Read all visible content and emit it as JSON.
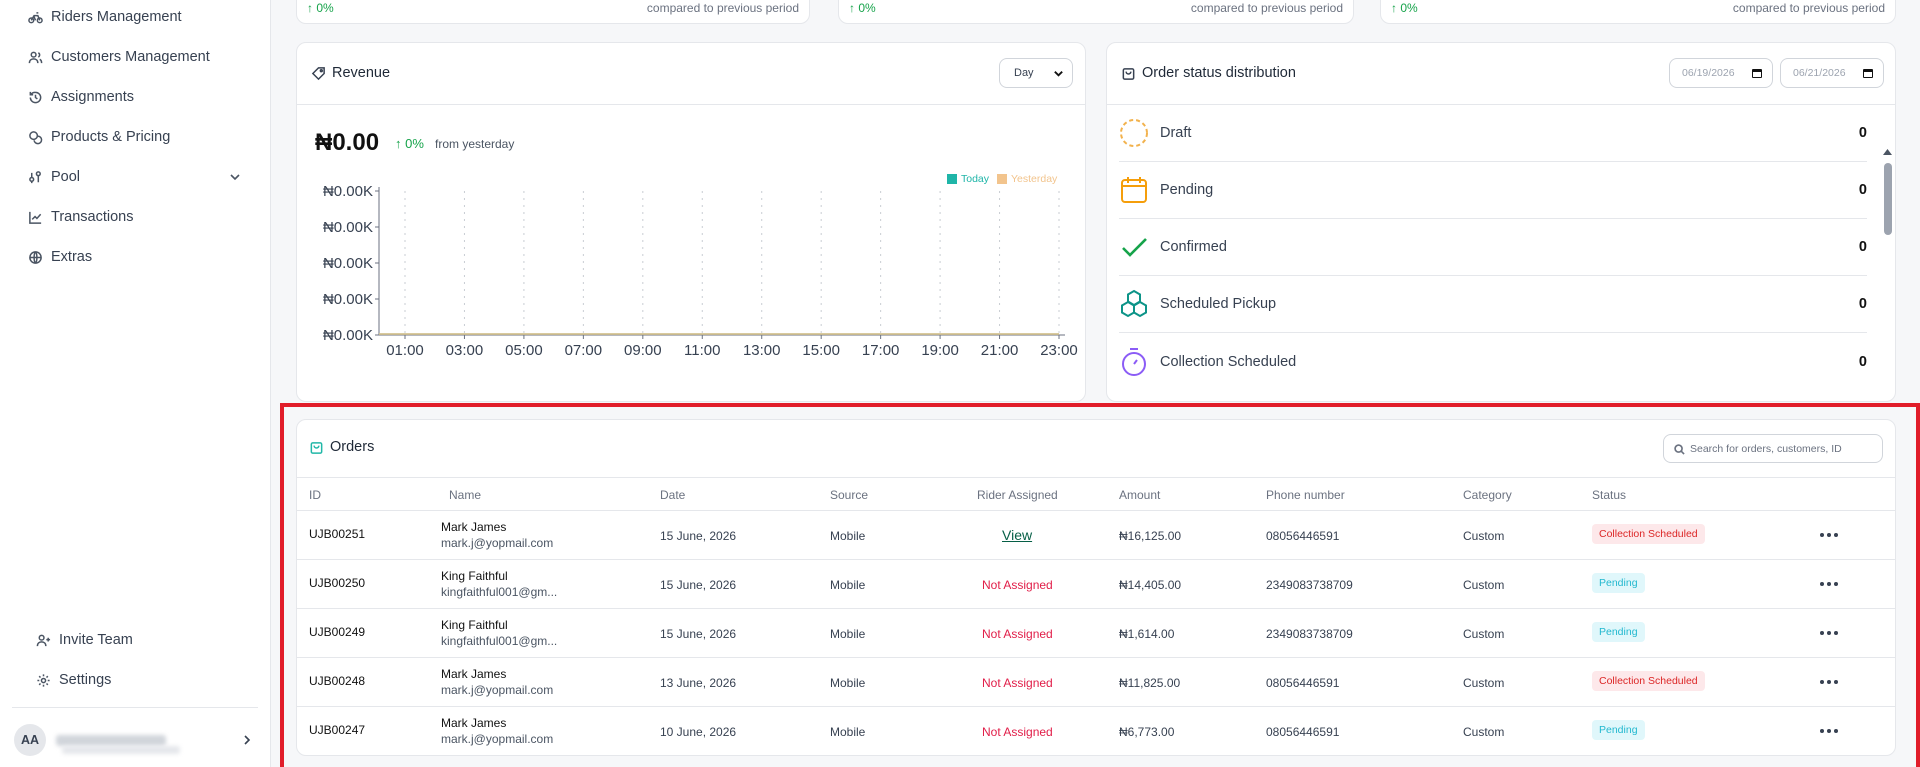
{
  "sidebar": {
    "items": [
      {
        "label": "Riders Management",
        "icon": "bike-icon"
      },
      {
        "label": "Customers Management",
        "icon": "users-icon"
      },
      {
        "label": "Assignments",
        "icon": "history-icon"
      },
      {
        "label": "Products & Pricing",
        "icon": "coins-icon"
      },
      {
        "label": "Pool",
        "icon": "pool-icon"
      },
      {
        "label": "Transactions",
        "icon": "chart-line-icon"
      },
      {
        "label": "Extras",
        "icon": "globe-icon"
      }
    ],
    "invite_label": "Invite Team",
    "settings_label": "Settings",
    "user_initials": "AA"
  },
  "stats": [
    {
      "pct": "0%",
      "compare": "compared to previous period"
    },
    {
      "pct": "0%",
      "compare": "compared to previous period"
    },
    {
      "pct": "0%",
      "compare": "compared to previous period"
    }
  ],
  "revenue": {
    "title": "Revenue",
    "period_select": "Day",
    "amount": "₦0.00",
    "change_pct": "0%",
    "change_text": "from yesterday"
  },
  "chart_data": {
    "type": "line",
    "x": [
      "01:00",
      "03:00",
      "05:00",
      "07:00",
      "09:00",
      "11:00",
      "13:00",
      "15:00",
      "17:00",
      "19:00",
      "21:00",
      "23:00"
    ],
    "y_tick_labels": [
      "₦0.00K",
      "₦0.00K",
      "₦0.00K",
      "₦0.00K",
      "₦0.00K"
    ],
    "series": [
      {
        "name": "Today",
        "color": "#1fb5a8",
        "values": [
          0,
          0,
          0,
          0,
          0,
          0,
          0,
          0,
          0,
          0,
          0,
          0
        ]
      },
      {
        "name": "Yesterday",
        "color": "#f2c48d",
        "values": [
          0,
          0,
          0,
          0,
          0,
          0,
          0,
          0,
          0,
          0,
          0,
          0
        ]
      }
    ],
    "legend": "top-right",
    "grid": "vertical-dashed"
  },
  "order_status": {
    "title": "Order status distribution",
    "date_from": "06/19/2026",
    "date_to": "06/21/2026",
    "items": [
      {
        "label": "Draft",
        "count": "0",
        "color": "#f2b24d"
      },
      {
        "label": "Pending",
        "count": "0",
        "color": "#f59e0b"
      },
      {
        "label": "Confirmed",
        "count": "0",
        "color": "#16a34a"
      },
      {
        "label": "Scheduled Pickup",
        "count": "0",
        "color": "#0d9488"
      },
      {
        "label": "Collection Scheduled",
        "count": "0",
        "color": "#8b5cf6"
      }
    ]
  },
  "orders": {
    "title": "Orders",
    "search_placeholder": "Search for orders, customers, ID",
    "columns": [
      "ID",
      "Name",
      "Date",
      "Source",
      "Rider Assigned",
      "Amount",
      "Phone number",
      "Category",
      "Status"
    ],
    "rows": [
      {
        "id": "UJB00251",
        "name": "Mark James",
        "email": "mark.j@yopmail.com",
        "date": "15 June, 2026",
        "source": "Mobile",
        "rider": "View",
        "amount": "₦16,125.00",
        "phone": "08056446591",
        "category": "Custom",
        "status": "Collection Scheduled"
      },
      {
        "id": "UJB00250",
        "name": "King Faithful",
        "email": "kingfaithful001@gm...",
        "date": "15 June, 2026",
        "source": "Mobile",
        "rider": "Not Assigned",
        "amount": "₦14,405.00",
        "phone": "2349083738709",
        "category": "Custom",
        "status": "Pending"
      },
      {
        "id": "UJB00249",
        "name": "King Faithful",
        "email": "kingfaithful001@gm...",
        "date": "15 June, 2026",
        "source": "Mobile",
        "rider": "Not Assigned",
        "amount": "₦1,614.00",
        "phone": "2349083738709",
        "category": "Custom",
        "status": "Pending"
      },
      {
        "id": "UJB00248",
        "name": "Mark James",
        "email": "mark.j@yopmail.com",
        "date": "13 June, 2026",
        "source": "Mobile",
        "rider": "Not Assigned",
        "amount": "₦11,825.00",
        "phone": "08056446591",
        "category": "Custom",
        "status": "Collection Scheduled"
      },
      {
        "id": "UJB00247",
        "name": "Mark James",
        "email": "mark.j@yopmail.com",
        "date": "10 June, 2026",
        "source": "Mobile",
        "rider": "Not Assigned",
        "amount": "₦6,773.00",
        "phone": "08056446591",
        "category": "Custom",
        "status": "Pending"
      }
    ]
  }
}
